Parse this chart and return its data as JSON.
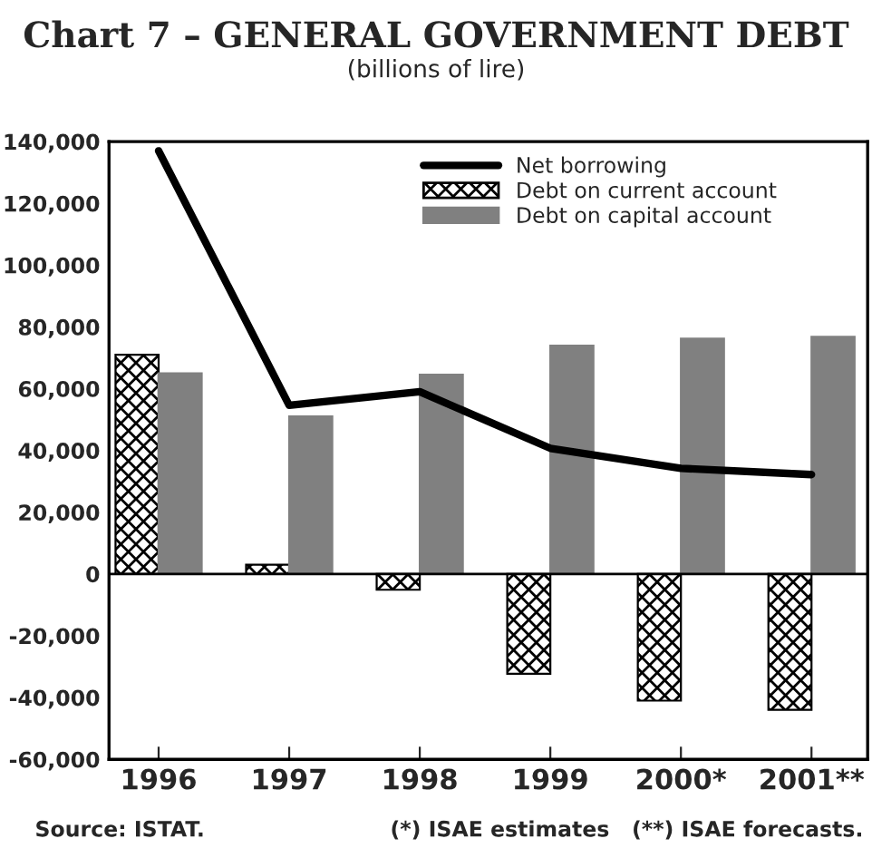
{
  "chart_data": {
    "type": "bar",
    "title": "Chart 7 – GENERAL GOVERNMENT DEBT",
    "subtitle": "(billions of lire)",
    "categories": [
      "1996",
      "1997",
      "1998",
      "1999",
      "2000*",
      "2001**"
    ],
    "series": [
      {
        "name": "Net borrowing",
        "type": "line",
        "color": "#000000",
        "values": [
          137000,
          54600,
          59000,
          40700,
          34200,
          32200
        ]
      },
      {
        "name": "Debt on current account",
        "color": "#000000",
        "values": [
          71000,
          3000,
          -5100,
          -32300,
          -41000,
          -44000
        ]
      },
      {
        "name": "Debt on capital account",
        "color": "#808080",
        "values": [
          65000,
          51000,
          64500,
          73900,
          76200,
          76800
        ]
      }
    ],
    "ylim": [
      -60000,
      140000
    ],
    "yticks": [
      {
        "value": -60000,
        "label": "-60,000"
      },
      {
        "value": -40000,
        "label": "-40,000"
      },
      {
        "value": -20000,
        "label": "-20,000"
      },
      0,
      {
        "value": 20000,
        "label": "20,000"
      },
      {
        "value": 40000,
        "label": "40,000"
      },
      {
        "value": 60000,
        "label": "60,000"
      },
      {
        "value": 80000,
        "label": "80,000"
      },
      {
        "value": 100000,
        "label": "100,000"
      },
      {
        "value": 120000,
        "label": "120,000"
      },
      {
        "value": 140000,
        "label": "140,000"
      }
    ],
    "legend": "top right",
    "ref_lines": [
      {
        "axis": "y",
        "value": 0,
        "color": "#000000"
      }
    ],
    "annotations": [
      "Source: ISTAT.",
      "(*) ISAE estimates   (**) ISAE forecasts."
    ]
  }
}
